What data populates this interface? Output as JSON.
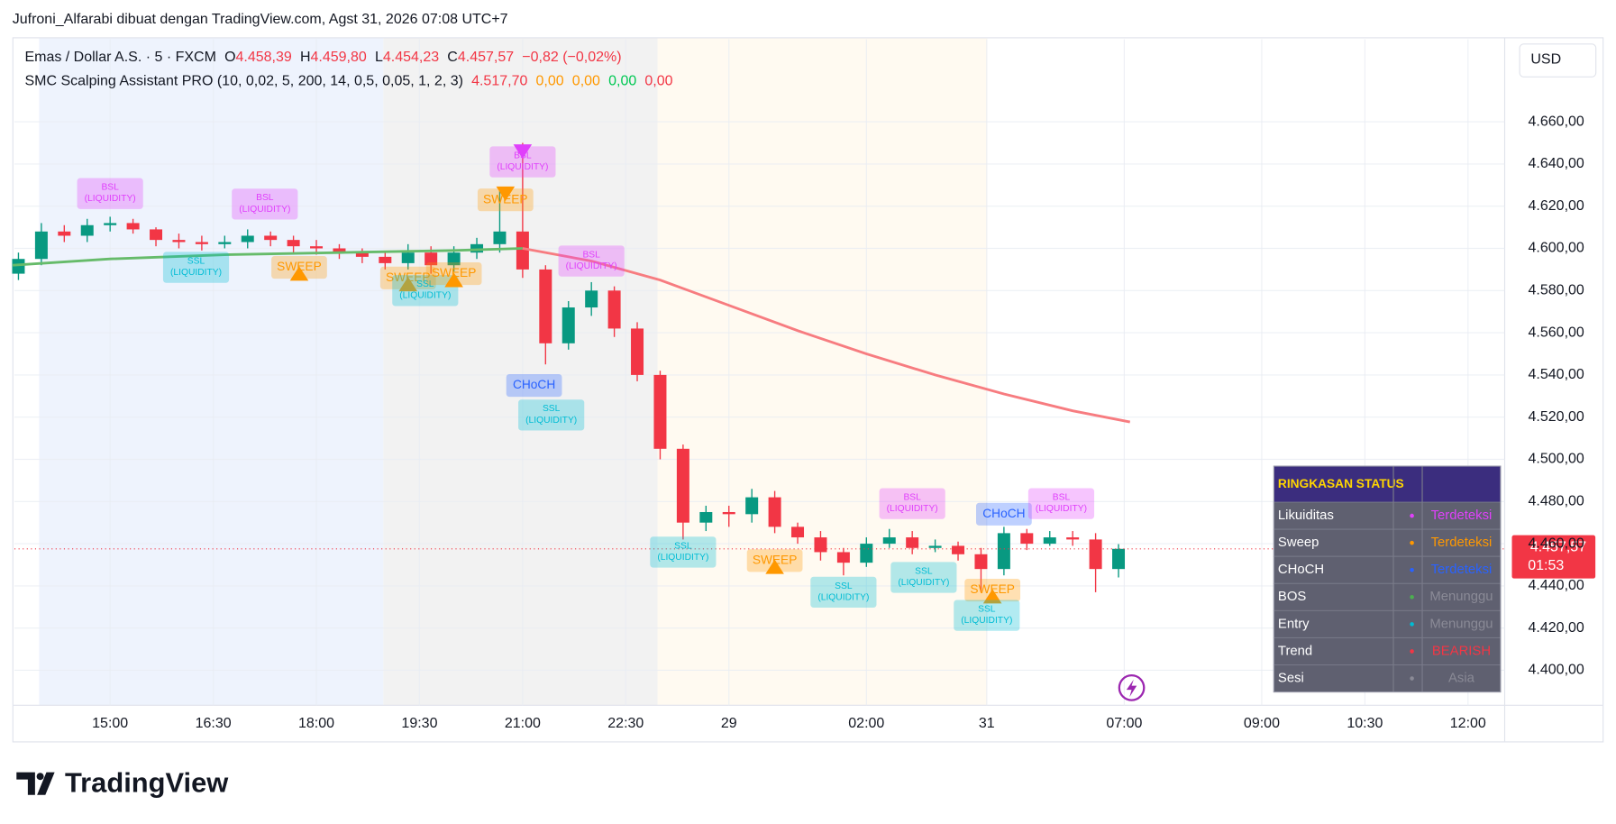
{
  "header": {
    "attribution": "Jufroni_Alfarabi dibuat dengan TradingView.com, Agst 31, 2026 07:08 UTC+7"
  },
  "legend": {
    "symbol": "Emas / Dollar A.S. · 5 · FXCM",
    "ohlc": [
      [
        "O",
        "4.458,39"
      ],
      [
        "H",
        "4.459,80"
      ],
      [
        "L",
        "4.454,23"
      ],
      [
        "C",
        "4.457,57"
      ]
    ],
    "change": "−0,82 (−0,02%)",
    "indicator": "SMC Scalping Assistant PRO (10, 0,02, 5, 200, 14, 0,5, 0,05, 1, 2, 3)",
    "indicator_values": [
      {
        "text": "4.517,70",
        "color": "#f23645"
      },
      {
        "text": "0,00",
        "color": "#ff9800"
      },
      {
        "text": "0,00",
        "color": "#ff9800"
      },
      {
        "text": "0,00",
        "color": "#00c853"
      },
      {
        "text": "0,00",
        "color": "#f23645"
      }
    ]
  },
  "currency": "USD",
  "price_tag": {
    "price": "4.457,57",
    "countdown": "01:53"
  },
  "chart_data": {
    "type": "candlestick",
    "xlim": [
      -16.7,
      243.4
    ],
    "ylim": [
      4383.4,
      4699.1
    ],
    "xticks": [
      {
        "value": 0,
        "label": "15:00"
      },
      {
        "value": 18,
        "label": "16:30"
      },
      {
        "value": 36,
        "label": "18:00"
      },
      {
        "value": 54,
        "label": "19:30"
      },
      {
        "value": 72,
        "label": "21:00"
      },
      {
        "value": 90,
        "label": "22:30"
      },
      {
        "value": 108,
        "label": "29"
      },
      {
        "value": 132,
        "label": "02:00"
      },
      {
        "value": 153,
        "label": "31"
      },
      {
        "value": 177,
        "label": "07:00"
      },
      {
        "value": 201,
        "label": "09:00"
      },
      {
        "value": 219,
        "label": "10:30"
      },
      {
        "value": 237,
        "label": "12:00"
      }
    ],
    "yticks": [
      {
        "value": 4400,
        "label": "4.400,00"
      },
      {
        "value": 4420,
        "label": "4.420,00"
      },
      {
        "value": 4440,
        "label": "4.440,00"
      },
      {
        "value": 4460,
        "label": "4.460,00"
      },
      {
        "value": 4480,
        "label": "4.480,00"
      },
      {
        "value": 4500,
        "label": "4.500,00"
      },
      {
        "value": 4520,
        "label": "4.520,00"
      },
      {
        "value": 4540,
        "label": "4.540,00"
      },
      {
        "value": 4560,
        "label": "4.560,00"
      },
      {
        "value": 4580,
        "label": "4.580,00"
      },
      {
        "value": 4600,
        "label": "4.600,00"
      },
      {
        "value": 4620,
        "label": "4.620,00"
      },
      {
        "value": 4640,
        "label": "4.640,00"
      },
      {
        "value": 4660,
        "label": "4.660,00"
      }
    ],
    "grid": true,
    "up_color": "#089981",
    "down_color": "#f23645",
    "x": [
      -16,
      -12,
      -8,
      -4,
      0,
      4,
      8,
      12,
      16,
      20,
      24,
      28,
      32,
      36,
      40,
      44,
      48,
      52,
      56,
      60,
      64,
      68,
      72,
      76,
      80,
      84,
      88,
      92,
      96,
      100,
      104,
      108,
      112,
      116,
      120,
      124,
      128,
      132,
      136,
      140,
      144,
      148,
      152,
      156,
      160,
      164,
      168,
      172,
      176
    ],
    "open": [
      4588,
      4595,
      4608,
      4606,
      4611,
      4612,
      4609,
      4604,
      4603,
      4602,
      4603,
      4606,
      4604,
      4601,
      4600,
      4598,
      4596,
      4593,
      4598,
      4592,
      4598,
      4602,
      4608,
      4590,
      4555,
      4572,
      4580,
      4562,
      4540,
      4505,
      4470,
      4475,
      4474,
      4482,
      4468,
      4463,
      4456,
      4451,
      4460,
      4463,
      4458,
      4459,
      4455,
      4448,
      4465,
      4460,
      4463,
      4462,
      4448
    ],
    "high": [
      4598,
      4612,
      4611,
      4614,
      4615,
      4614,
      4610,
      4607,
      4606,
      4606,
      4609,
      4608,
      4606,
      4604,
      4602,
      4600,
      4598,
      4602,
      4601,
      4601,
      4605,
      4628,
      4650,
      4592,
      4575,
      4584,
      4582,
      4565,
      4542,
      4507,
      4478,
      4478,
      4486,
      4485,
      4470,
      4466,
      4458,
      4463,
      4467,
      4466,
      4462,
      4461,
      4458,
      4468,
      4467,
      4466,
      4466,
      4465,
      4459.8
    ],
    "low": [
      4585,
      4592,
      4603,
      4603,
      4608,
      4607,
      4601,
      4600,
      4599,
      4600,
      4600,
      4601,
      4598,
      4597,
      4595,
      4593,
      4590,
      4590,
      4588,
      4589,
      4595,
      4598,
      4586,
      4545,
      4552,
      4568,
      4558,
      4537,
      4500,
      4462,
      4466,
      4468,
      4470,
      4465,
      4460,
      4452,
      4445,
      4449,
      4458,
      4455,
      4456,
      4452,
      4437,
      4445,
      4457,
      4459,
      4459,
      4437,
      4444
    ],
    "close": [
      4595,
      4608,
      4606,
      4611,
      4612,
      4609,
      4604,
      4603,
      4602,
      4603,
      4606,
      4604,
      4601,
      4600,
      4598,
      4596,
      4593,
      4598,
      4592,
      4598,
      4602,
      4608,
      4590,
      4555,
      4572,
      4580,
      4562,
      4540,
      4505,
      4470,
      4475,
      4474,
      4482,
      4468,
      4463,
      4456,
      4451,
      4460,
      4463,
      4458,
      4459,
      4455,
      4448,
      4465,
      4460,
      4463,
      4462,
      4448,
      4457.57
    ],
    "moving_averages": [
      {
        "color": "#66bb6a",
        "x": [
          -17,
          0,
          20,
          40,
          60,
          72
        ],
        "values": [
          4592,
          4595,
          4597,
          4598,
          4599,
          4600
        ]
      },
      {
        "color": "#f77c80",
        "x": [
          72,
          84,
          96,
          108,
          120,
          132,
          144,
          156,
          168,
          178
        ],
        "values": [
          4600,
          4594,
          4585,
          4573,
          4561,
          4550,
          4540,
          4531,
          4523,
          4517.7
        ]
      }
    ],
    "annotations": [
      {
        "lines": [
          "BSL",
          "(LIQUIDITY)"
        ],
        "x": 0,
        "y": 4626,
        "color": "#e040fb"
      },
      {
        "lines": [
          "BSL",
          "(LIQUIDITY)"
        ],
        "x": 27,
        "y": 4621,
        "color": "#e040fb"
      },
      {
        "lines": [
          "SSL",
          "(LIQUIDITY)"
        ],
        "x": 15,
        "y": 4591,
        "color": "#00bcd4"
      },
      {
        "lines": [
          "SWEEP"
        ],
        "x": 33,
        "y": 4591,
        "color": "#ff9800",
        "triangle": "up"
      },
      {
        "lines": [
          "SWEEP"
        ],
        "x": 52,
        "y": 4586,
        "color": "#ff9800",
        "triangle": "up"
      },
      {
        "lines": [
          "SSL",
          "(LIQUIDITY)"
        ],
        "x": 55,
        "y": 4580,
        "color": "#00bcd4"
      },
      {
        "lines": [
          "SWEEP"
        ],
        "x": 60,
        "y": 4588,
        "color": "#ff9800",
        "triangle": "up"
      },
      {
        "lines": [
          "SWEEP"
        ],
        "x": 69,
        "y": 4623,
        "color": "#ff9800",
        "triangle": "down"
      },
      {
        "lines": [
          "BSL",
          "(LIQUIDITY)"
        ],
        "x": 72,
        "y": 4641,
        "color": "#e040fb",
        "triangle": "down"
      },
      {
        "lines": [
          "BSL",
          "(LIQUIDITY)"
        ],
        "x": 84,
        "y": 4594,
        "color": "#e040fb"
      },
      {
        "lines": [
          "CHoCH"
        ],
        "x": 74,
        "y": 4535,
        "color": "#2962ff"
      },
      {
        "lines": [
          "SSL",
          "(LIQUIDITY)"
        ],
        "x": 77,
        "y": 4521,
        "color": "#00bcd4"
      },
      {
        "lines": [
          "SSL",
          "(LIQUIDITY)"
        ],
        "x": 100,
        "y": 4456,
        "color": "#00bcd4"
      },
      {
        "lines": [
          "SWEEP"
        ],
        "x": 116,
        "y": 4452,
        "color": "#ff9800",
        "triangle": "up"
      },
      {
        "lines": [
          "SSL",
          "(LIQUIDITY)"
        ],
        "x": 128,
        "y": 4437,
        "color": "#00bcd4"
      },
      {
        "lines": [
          "BSL",
          "(LIQUIDITY)"
        ],
        "x": 140,
        "y": 4479,
        "color": "#e040fb"
      },
      {
        "lines": [
          "SSL",
          "(LIQUIDITY)"
        ],
        "x": 142,
        "y": 4444,
        "color": "#00bcd4"
      },
      {
        "lines": [
          "CHoCH"
        ],
        "x": 156,
        "y": 4474,
        "color": "#2962ff"
      },
      {
        "lines": [
          "BSL",
          "(LIQUIDITY)"
        ],
        "x": 166,
        "y": 4479,
        "color": "#e040fb"
      },
      {
        "lines": [
          "SWEEP"
        ],
        "x": 154,
        "y": 4438,
        "color": "#ff9800",
        "triangle": "up"
      },
      {
        "lines": [
          "SSL",
          "(LIQUIDITY)"
        ],
        "x": 153,
        "y": 4426,
        "color": "#00bcd4"
      }
    ]
  },
  "status_table": {
    "title": "RINGKASAN STATUS",
    "rows": [
      {
        "label": "Likuiditas",
        "status": "Terdeteksi",
        "dot_color": "#e040fb",
        "text_color": "#e040fb"
      },
      {
        "label": "Sweep",
        "status": "Terdeteksi",
        "dot_color": "#ff9800",
        "text_color": "#ff9800"
      },
      {
        "label": "CHoCH",
        "status": "Terdeteksi",
        "dot_color": "#2962ff",
        "text_color": "#2962ff"
      },
      {
        "label": "BOS",
        "status": "Menunggu",
        "dot_color": "#4caf50",
        "text_color": "#8a8a96"
      },
      {
        "label": "Entry",
        "status": "Menunggu",
        "dot_color": "#00bcd4",
        "text_color": "#8a8a96"
      },
      {
        "label": "Trend",
        "status": "BEARISH",
        "dot_color": "#f23645",
        "text_color": "#f23645"
      },
      {
        "label": "Sesi",
        "status": "Asia",
        "dot_color": "#8a8a96",
        "text_color": "#8a8a96"
      }
    ]
  },
  "footer": {
    "logo": "TradingView"
  }
}
